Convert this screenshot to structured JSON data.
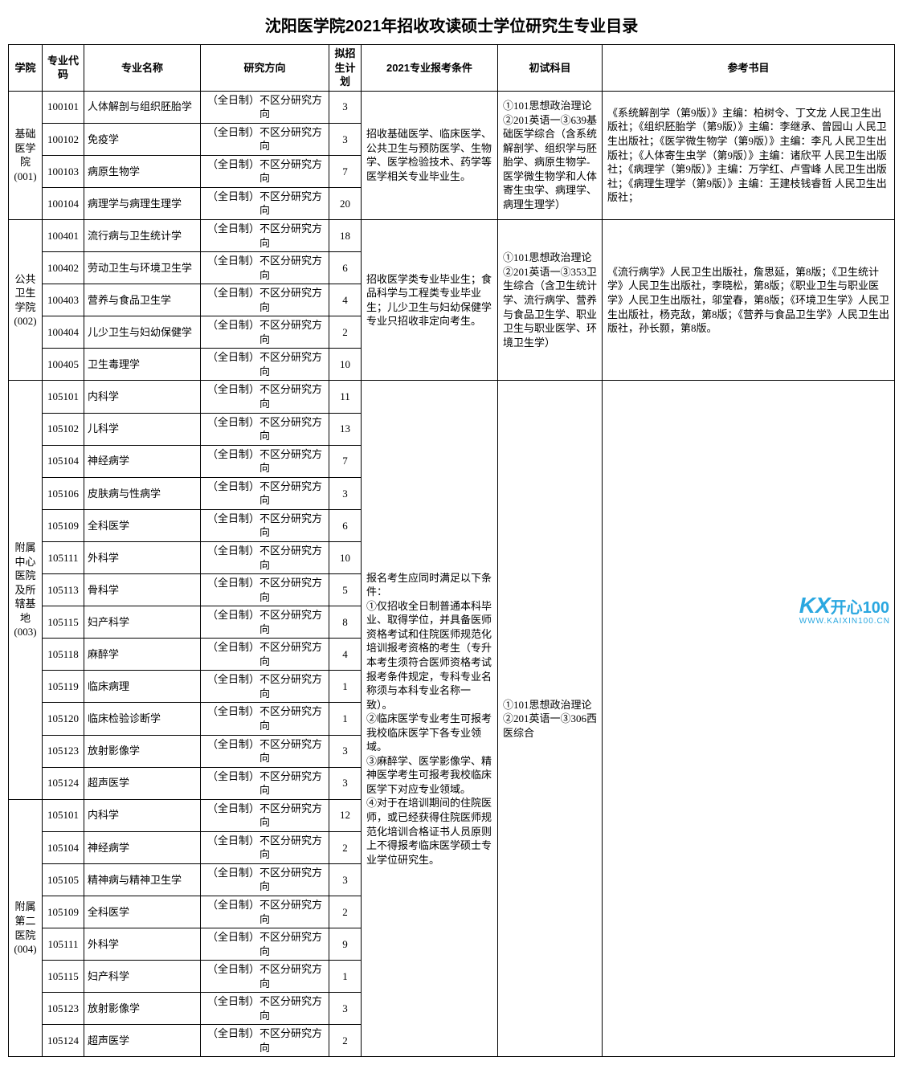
{
  "title": "沈阳医学院2021年招收攻读硕士学位研究生专业目录",
  "columns": [
    "学院",
    "专业代码",
    "专业名称",
    "研究方向",
    "拟招生计划",
    "2021专业报考条件",
    "初试科目",
    "参考书目"
  ],
  "direction_text": "（全日制）不区分研究方向",
  "groups": [
    {
      "college": "基础医学院(001)",
      "condition": "招收基础医学、临床医学、公共卫生与预防医学、生物学、医学检验技术、药学等医学相关专业毕业生。",
      "exam": "①101思想政治理论②201英语一③639基础医学综合（含系统解剖学、组织学与胚胎学、病原生物学-医学微生物学和人体寄生虫学、病理学、病理生理学）",
      "reference": "《系统解剖学（第9版）》主编：柏树令、丁文龙 人民卫生出版社；《组织胚胎学（第9版）》主编：李继承、曾园山 人民卫生出版社；《医学微生物学（第9版）》主编：李凡 人民卫生出版社；《人体寄生虫学（第9版）》主编：诸欣平 人民卫生出版社；《病理学（第9版）》主编：万学红、卢雪峰 人民卫生出版社；《病理生理学（第9版）》主编：王建枝钱睿哲 人民卫生出版社；",
      "rows": [
        {
          "code": "100101",
          "major": "人体解剖与组织胚胎学",
          "plan": 3
        },
        {
          "code": "100102",
          "major": "免疫学",
          "plan": 3
        },
        {
          "code": "100103",
          "major": "病原生物学",
          "plan": 7
        },
        {
          "code": "100104",
          "major": "病理学与病理生理学",
          "plan": 20
        }
      ]
    },
    {
      "college": "公共卫生学院(002)",
      "condition": "招收医学类专业毕业生；食品科学与工程类专业毕业生；儿少卫生与妇幼保健学专业只招收非定向考生。",
      "exam": "①101思想政治理论②201英语一③353卫生综合（含卫生统计学、流行病学、营养与食品卫生学、职业卫生与职业医学、环境卫生学）",
      "reference": "《流行病学》人民卫生出版社，詹思延，第8版；《卫生统计学》人民卫生出版社，李晓松，第8版；《职业卫生与职业医学》人民卫生出版社，邬堂春，第8版；《环境卫生学》人民卫生出版社，杨克敌，第8版；《营养与食品卫生学》人民卫生出版社，孙长颢，第8版。",
      "rows": [
        {
          "code": "100401",
          "major": "流行病与卫生统计学",
          "plan": 18
        },
        {
          "code": "100402",
          "major": "劳动卫生与环境卫生学",
          "plan": 6
        },
        {
          "code": "100403",
          "major": "营养与食品卫生学",
          "plan": 4
        },
        {
          "code": "100404",
          "major": "儿少卫生与妇幼保健学",
          "plan": 2
        },
        {
          "code": "100405",
          "major": "卫生毒理学",
          "plan": 10
        }
      ]
    },
    {
      "college_pair": true,
      "colleges": [
        {
          "name": "附属中心医院及所辖基地(003)",
          "row_count": 13
        },
        {
          "name": "附属第二医院(004)",
          "row_count": 8
        }
      ],
      "condition": "报名考生应同时满足以下条件：\n①仅招收全日制普通本科毕业、取得学位，并具备医师资格考试和住院医师规范化培训报考资格的考生（专升本考生须符合医师资格考试报考条件规定，专科专业名称须与本科专业名称一致）。\n②临床医学专业考生可报考我校临床医学下各专业领域。\n③麻醉学、医学影像学、精神医学考生可报考我校临床医学下对应专业领域。\n④对于在培训期间的住院医师，或已经获得住院医师规范化培训合格证书人员原则上不得报考临床医学硕士专业学位研究生。",
      "exam": "①101思想政治理论②201英语一③306西医综合",
      "reference": "",
      "rows": [
        {
          "code": "105101",
          "major": "内科学",
          "plan": 11,
          "college_idx": 0
        },
        {
          "code": "105102",
          "major": "儿科学",
          "plan": 13,
          "college_idx": 0
        },
        {
          "code": "105104",
          "major": "神经病学",
          "plan": 7,
          "college_idx": 0
        },
        {
          "code": "105106",
          "major": "皮肤病与性病学",
          "plan": 3,
          "college_idx": 0
        },
        {
          "code": "105109",
          "major": "全科医学",
          "plan": 6,
          "college_idx": 0
        },
        {
          "code": "105111",
          "major": "外科学",
          "plan": 10,
          "college_idx": 0
        },
        {
          "code": "105113",
          "major": "骨科学",
          "plan": 5,
          "college_idx": 0
        },
        {
          "code": "105115",
          "major": "妇产科学",
          "plan": 8,
          "college_idx": 0
        },
        {
          "code": "105118",
          "major": "麻醉学",
          "plan": 4,
          "college_idx": 0
        },
        {
          "code": "105119",
          "major": "临床病理",
          "plan": 1,
          "college_idx": 0
        },
        {
          "code": "105120",
          "major": "临床检验诊断学",
          "plan": 1,
          "college_idx": 0
        },
        {
          "code": "105123",
          "major": "放射影像学",
          "plan": 3,
          "college_idx": 0
        },
        {
          "code": "105124",
          "major": "超声医学",
          "plan": 3,
          "college_idx": 0
        },
        {
          "code": "105101",
          "major": "内科学",
          "plan": 12,
          "college_idx": 1
        },
        {
          "code": "105104",
          "major": "神经病学",
          "plan": 2,
          "college_idx": 1
        },
        {
          "code": "105105",
          "major": "精神病与精神卫生学",
          "plan": 3,
          "college_idx": 1
        },
        {
          "code": "105109",
          "major": "全科医学",
          "plan": 2,
          "college_idx": 1
        },
        {
          "code": "105111",
          "major": "外科学",
          "plan": 9,
          "college_idx": 1
        },
        {
          "code": "105115",
          "major": "妇产科学",
          "plan": 1,
          "college_idx": 1
        },
        {
          "code": "105123",
          "major": "放射影像学",
          "plan": 3,
          "college_idx": 1
        },
        {
          "code": "105124",
          "major": "超声医学",
          "plan": 2,
          "college_idx": 1
        }
      ]
    }
  ],
  "watermark": {
    "kx": "KX",
    "cn": "开心100",
    "url": "WWW.KAIXIN100.CN"
  }
}
